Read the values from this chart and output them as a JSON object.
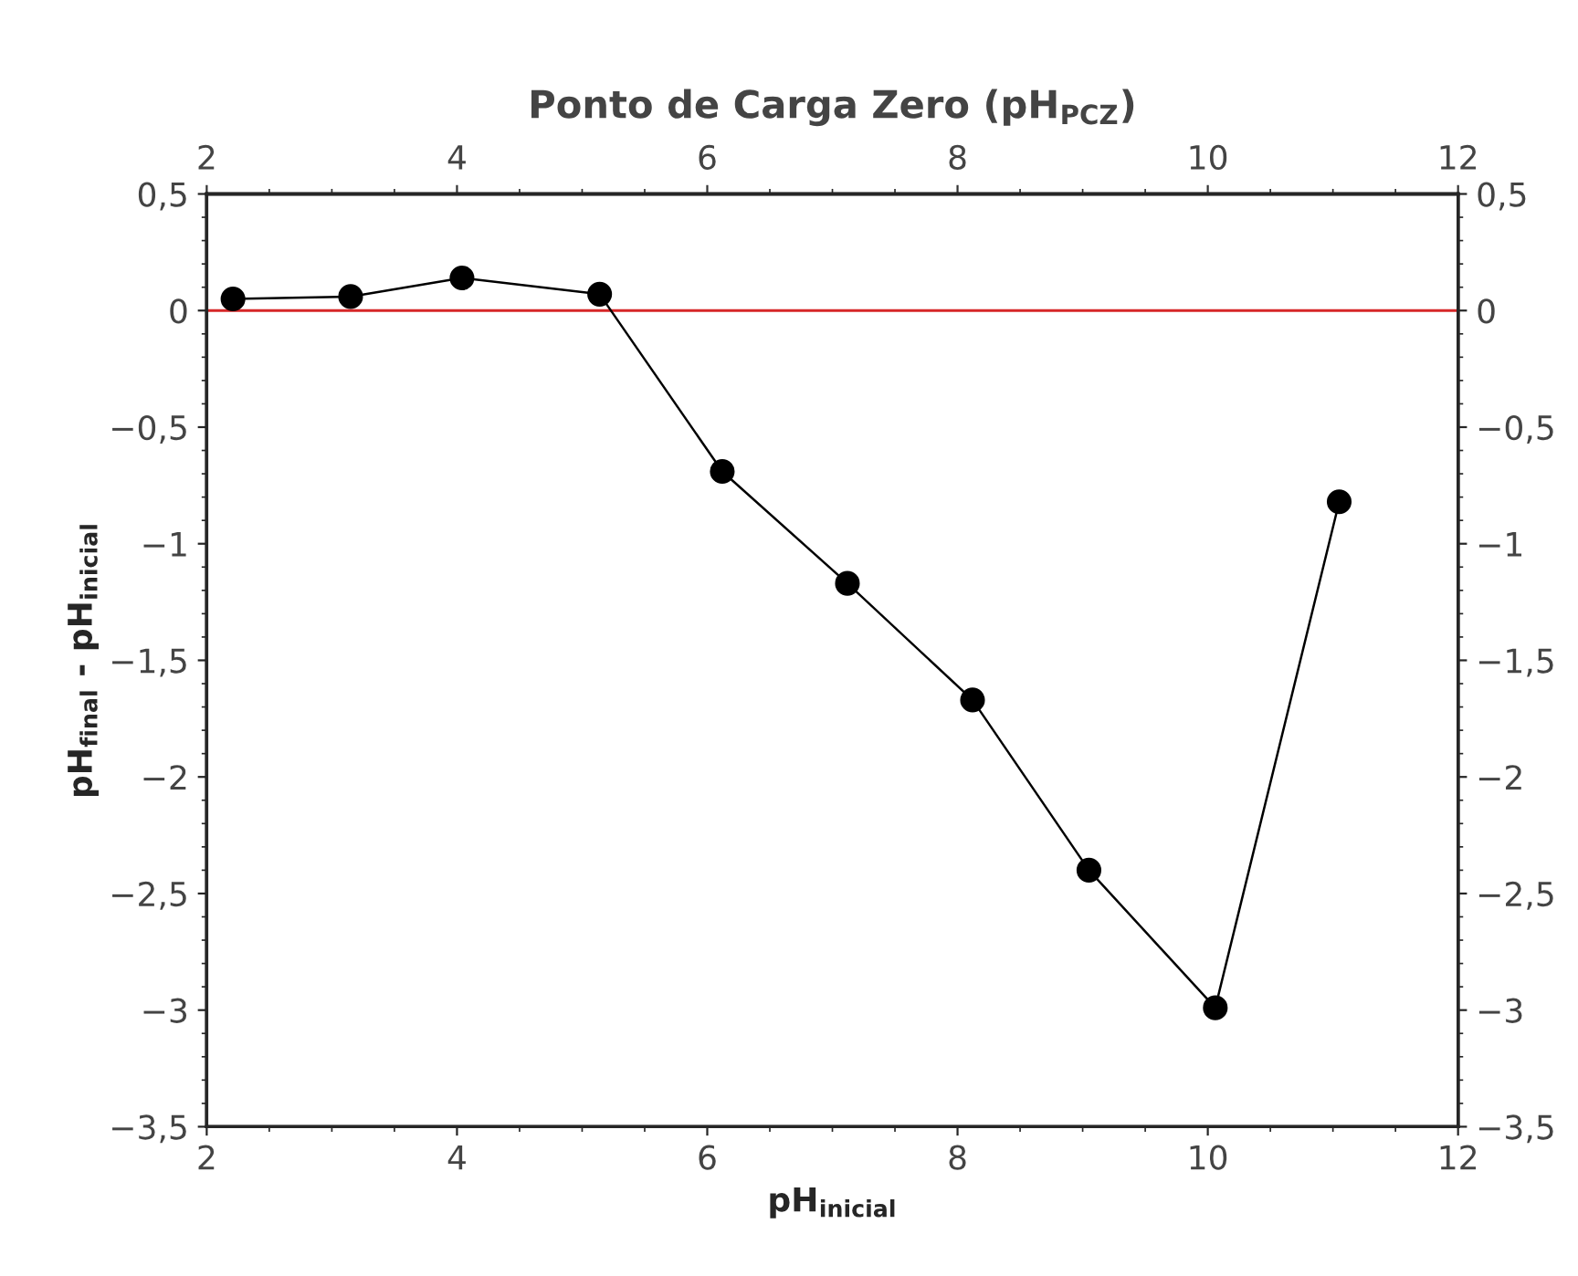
{
  "chart_data": {
    "type": "line",
    "title": "Ponto de Carga Zero (pH$_{PCZ}$)",
    "xlabel": "pH$_{inicial}$",
    "ylabel": "pH$_{final}$ - pH$_{inicial}$",
    "x": [
      2.21,
      3.15,
      4.04,
      5.14,
      6.12,
      7.12,
      8.12,
      9.05,
      10.06,
      11.05
    ],
    "series": [
      {
        "color": "#000000",
        "values": [
          0.05,
          0.06,
          0.14,
          0.07,
          -0.69,
          -1.17,
          -1.67,
          -2.4,
          -2.99,
          -0.82
        ]
      }
    ],
    "xlim": [
      2,
      12
    ],
    "xticks": [
      2,
      4,
      6,
      8,
      10,
      12
    ],
    "x2lim": [
      2,
      12
    ],
    "x2ticks": [
      2,
      4,
      6,
      8,
      10,
      12
    ],
    "ylim": [
      -3.5,
      0.5
    ],
    "yticks": [
      {
        "value": -3.5,
        "label": "−3,5"
      },
      {
        "value": -3,
        "label": "−3"
      },
      {
        "value": -2.5,
        "label": "−2,5"
      },
      {
        "value": -2,
        "label": "−2"
      },
      {
        "value": -1.5,
        "label": "−1,5"
      },
      {
        "value": -1,
        "label": "−1"
      },
      {
        "value": -0.5,
        "label": "−0,5"
      },
      0,
      {
        "value": 0.5,
        "label": "0,5"
      }
    ],
    "y2lim": [
      -3.5,
      0.5
    ],
    "y2ticks": [
      {
        "value": -3.5,
        "label": "−3,5"
      },
      {
        "value": -3,
        "label": "−3"
      },
      {
        "value": -2.5,
        "label": "−2,5"
      },
      {
        "value": -2,
        "label": "−2"
      },
      {
        "value": -1.5,
        "label": "−1,5"
      },
      {
        "value": -1,
        "label": "−1"
      },
      {
        "value": -0.5,
        "label": "−0,5"
      },
      0,
      {
        "value": 0.5,
        "label": "0,5"
      }
    ],
    "ref_lines": [
      {
        "axis": "y",
        "value": 0,
        "label": null,
        "color": "#d62728",
        "line_style": "solid"
      }
    ],
    "marker": "circle",
    "line_style": "solid",
    "grid": false,
    "legend": false
  }
}
